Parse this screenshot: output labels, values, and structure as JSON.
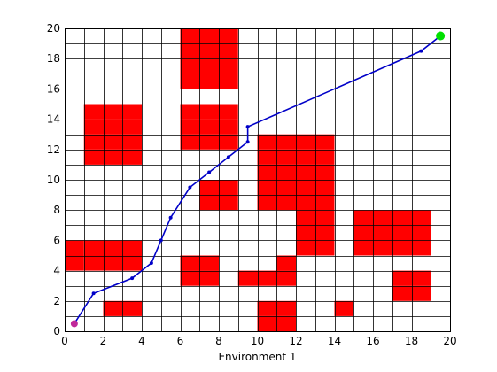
{
  "chart_data": {
    "type": "grid-path",
    "xlabel": "Environment 1",
    "ylabel": "",
    "title": "",
    "xlim": [
      0,
      20
    ],
    "ylim": [
      0,
      20
    ],
    "xticks": [
      0,
      2,
      4,
      6,
      8,
      10,
      12,
      14,
      16,
      18,
      20
    ],
    "yticks": [
      0,
      2,
      4,
      6,
      8,
      10,
      12,
      14,
      16,
      18,
      20
    ],
    "grid": true,
    "grid_cell": 1,
    "colors": {
      "obstacle": "#ff0000",
      "path": "#0000c8",
      "start": "#c0289a",
      "goal": "#00e000",
      "grid": "#000000"
    },
    "obstacles": [
      [
        6,
        16
      ],
      [
        7,
        16
      ],
      [
        8,
        16
      ],
      [
        6,
        17
      ],
      [
        7,
        17
      ],
      [
        8,
        17
      ],
      [
        6,
        18
      ],
      [
        7,
        18
      ],
      [
        8,
        18
      ],
      [
        6,
        19
      ],
      [
        7,
        19
      ],
      [
        8,
        19
      ],
      [
        1,
        11
      ],
      [
        2,
        11
      ],
      [
        3,
        11
      ],
      [
        1,
        12
      ],
      [
        2,
        12
      ],
      [
        3,
        12
      ],
      [
        1,
        13
      ],
      [
        2,
        13
      ],
      [
        3,
        13
      ],
      [
        1,
        14
      ],
      [
        2,
        14
      ],
      [
        3,
        14
      ],
      [
        6,
        12
      ],
      [
        7,
        12
      ],
      [
        8,
        12
      ],
      [
        6,
        13
      ],
      [
        7,
        13
      ],
      [
        8,
        13
      ],
      [
        6,
        14
      ],
      [
        7,
        14
      ],
      [
        8,
        14
      ],
      [
        10,
        8
      ],
      [
        11,
        8
      ],
      [
        12,
        8
      ],
      [
        13,
        8
      ],
      [
        10,
        9
      ],
      [
        11,
        9
      ],
      [
        12,
        9
      ],
      [
        13,
        9
      ],
      [
        10,
        10
      ],
      [
        11,
        10
      ],
      [
        12,
        10
      ],
      [
        13,
        10
      ],
      [
        10,
        11
      ],
      [
        11,
        11
      ],
      [
        12,
        11
      ],
      [
        13,
        11
      ],
      [
        10,
        12
      ],
      [
        11,
        12
      ],
      [
        12,
        12
      ],
      [
        13,
        12
      ],
      [
        12,
        5
      ],
      [
        13,
        5
      ],
      [
        12,
        6
      ],
      [
        13,
        6
      ],
      [
        12,
        7
      ],
      [
        13,
        7
      ],
      [
        7,
        8
      ],
      [
        8,
        8
      ],
      [
        7,
        9
      ],
      [
        8,
        9
      ],
      [
        15,
        5
      ],
      [
        16,
        5
      ],
      [
        17,
        5
      ],
      [
        18,
        5
      ],
      [
        15,
        6
      ],
      [
        16,
        6
      ],
      [
        17,
        6
      ],
      [
        18,
        6
      ],
      [
        15,
        7
      ],
      [
        16,
        7
      ],
      [
        17,
        7
      ],
      [
        18,
        7
      ],
      [
        0,
        4
      ],
      [
        1,
        4
      ],
      [
        2,
        4
      ],
      [
        3,
        4
      ],
      [
        0,
        5
      ],
      [
        1,
        5
      ],
      [
        2,
        5
      ],
      [
        3,
        5
      ],
      [
        6,
        3
      ],
      [
        7,
        3
      ],
      [
        6,
        4
      ],
      [
        7,
        4
      ],
      [
        9,
        3
      ],
      [
        10,
        3
      ],
      [
        11,
        3
      ],
      [
        11,
        4
      ],
      [
        17,
        2
      ],
      [
        18,
        2
      ],
      [
        17,
        3
      ],
      [
        18,
        3
      ],
      [
        2,
        1
      ],
      [
        3,
        1
      ],
      [
        10,
        0
      ],
      [
        11,
        0
      ],
      [
        10,
        1
      ],
      [
        11,
        1
      ],
      [
        14,
        1
      ]
    ],
    "path": {
      "x": [
        0.5,
        1.5,
        3.5,
        4.5,
        5.0,
        5.5,
        6.5,
        7.5,
        8.5,
        9.5,
        9.5,
        18.5,
        19.5
      ],
      "y": [
        0.5,
        2.5,
        3.5,
        4.5,
        6.0,
        7.5,
        9.5,
        10.5,
        11.5,
        12.5,
        13.5,
        18.5,
        19.5
      ]
    },
    "start": [
      0.5,
      0.5
    ],
    "goal": [
      19.5,
      19.5
    ]
  }
}
